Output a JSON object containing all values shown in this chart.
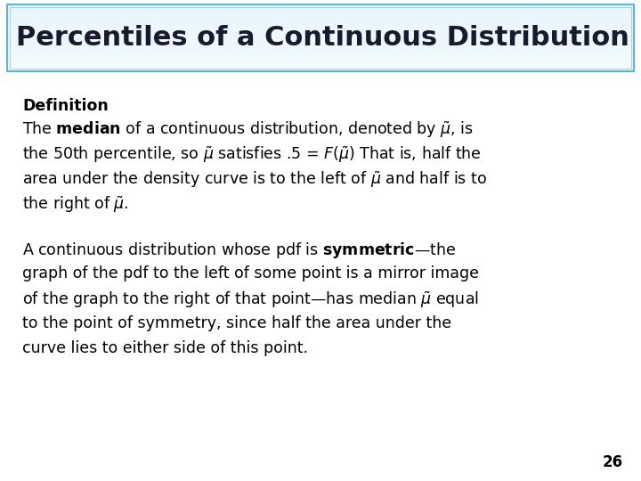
{
  "title": "Percentiles of a Continuous Distribution",
  "title_bg_top": "#e8f4fb",
  "title_bg_bottom": "#b8dff0",
  "title_border_color": "#5ab4d6",
  "title_text_color": "#1a1a2e",
  "background_color": "#ffffff",
  "page_number": "26",
  "definition_label": "Definition",
  "font_size_title": 22,
  "font_size_definition": 12.5,
  "font_size_body": 12.5,
  "font_size_page": 12
}
